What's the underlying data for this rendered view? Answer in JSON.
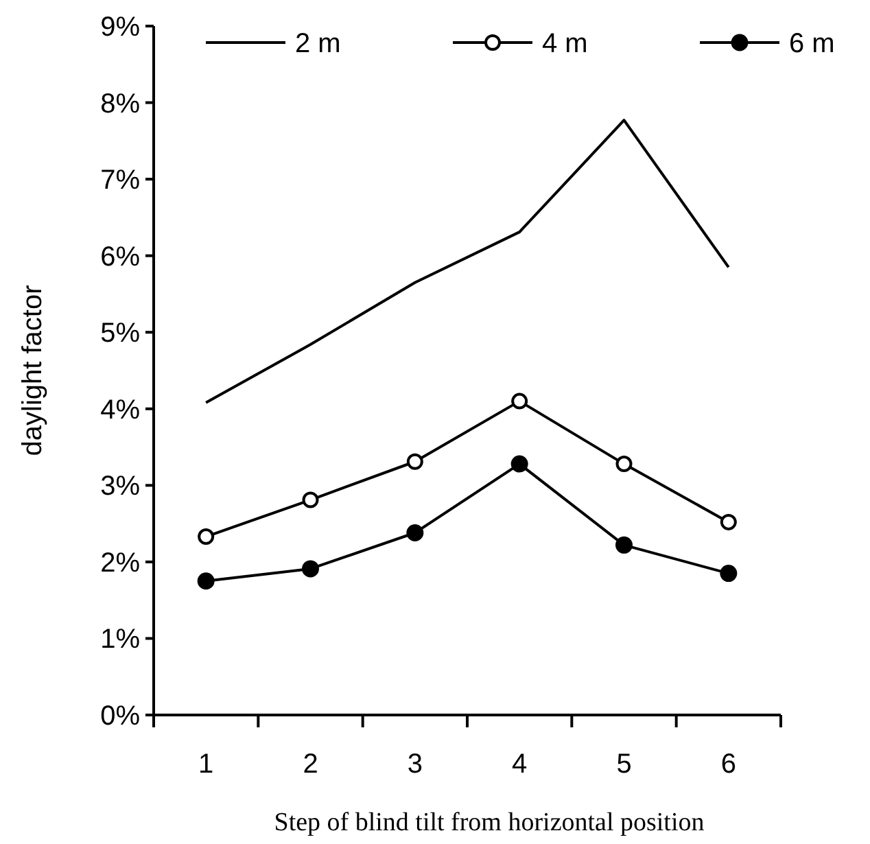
{
  "chart_data": {
    "type": "line",
    "xlabel": "Step of  blind tilt from horizontal position",
    "ylabel": "daylight factor",
    "categories": [
      "1",
      "2",
      "3",
      "4",
      "5",
      "6"
    ],
    "ylim": [
      0,
      9
    ],
    "yticks": [
      {
        "value": 0,
        "label": "0%"
      },
      {
        "value": 1,
        "label": "1%"
      },
      {
        "value": 2,
        "label": "2%"
      },
      {
        "value": 3,
        "label": "3%"
      },
      {
        "value": 4,
        "label": "4%"
      },
      {
        "value": 5,
        "label": "5%"
      },
      {
        "value": 6,
        "label": "6%"
      },
      {
        "value": 7,
        "label": "7%"
      },
      {
        "value": 8,
        "label": "8%"
      },
      {
        "value": 9,
        "label": "9%"
      }
    ],
    "grid": false,
    "legend": "top",
    "line_style": "solid",
    "series": [
      {
        "name": "2 m",
        "color": "#000000",
        "marker": "none",
        "values": [
          4.08,
          4.84,
          5.65,
          6.31,
          7.77,
          5.85
        ]
      },
      {
        "name": "4 m",
        "color": "#000000",
        "marker": "open-circle",
        "values": [
          2.33,
          2.81,
          3.31,
          4.1,
          3.28,
          2.52
        ]
      },
      {
        "name": "6 m",
        "color": "#000000",
        "marker": "circle",
        "values": [
          1.75,
          1.91,
          2.38,
          3.28,
          2.22,
          1.85
        ]
      }
    ]
  }
}
